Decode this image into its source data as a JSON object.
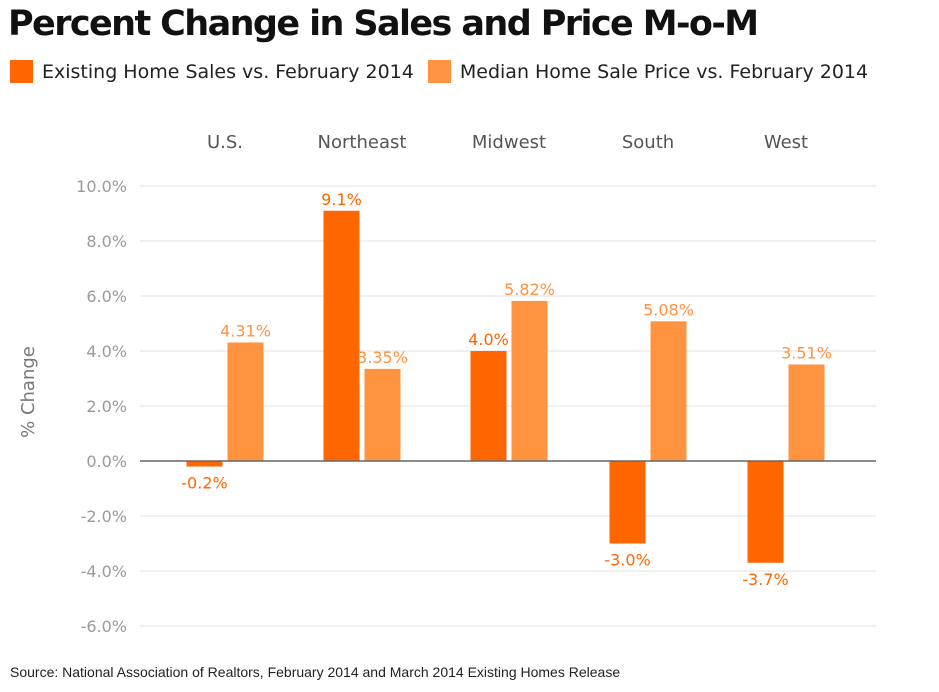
{
  "colors": {
    "sales": "#ff6600",
    "price": "#ff9340",
    "grid": "#e2e2e2",
    "zero_line": "#666666"
  },
  "chart_data": {
    "type": "bar",
    "title": "Percent Change in Sales and Price M-o-M",
    "categories": [
      "U.S.",
      "Northeast",
      "Midwest",
      "South",
      "West"
    ],
    "series": [
      {
        "name": "Existing Home Sales vs. February 2014",
        "values": [
          -0.2,
          9.1,
          4.0,
          -3.0,
          -3.7
        ],
        "labels": [
          "-0.2%",
          "9.1%",
          "4.0%",
          "-3.0%",
          "-3.7%"
        ]
      },
      {
        "name": "Median Home Sale Price vs. February 2014",
        "values": [
          4.31,
          3.35,
          5.82,
          5.08,
          3.51
        ],
        "labels": [
          "4.31%",
          "3.35%",
          "5.82%",
          "5.08%",
          "3.51%"
        ]
      }
    ],
    "xlabel": "",
    "ylabel": "% Change",
    "ylim": [
      -6.0,
      10.0
    ],
    "yticks": [
      10.0,
      8.0,
      6.0,
      4.0,
      2.0,
      0.0,
      -2.0,
      -4.0,
      -6.0
    ],
    "ytick_labels": [
      "10.0%",
      "8.0%",
      "6.0%",
      "4.0%",
      "2.0%",
      "0.0%",
      "-2.0%",
      "-4.0%",
      "-6.0%"
    ],
    "grid": true,
    "legend_position": "top-left",
    "category_label_position": "top"
  },
  "source": "Source: National Association of Realtors, February 2014 and March 2014 Existing Homes Release"
}
